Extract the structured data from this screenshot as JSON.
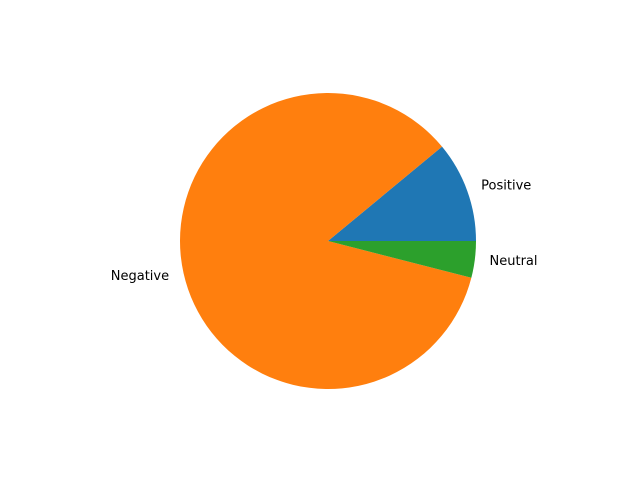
{
  "chart_data": {
    "type": "pie",
    "title": "",
    "categories": [
      "Positive",
      "Negative",
      "Neutral"
    ],
    "values": [
      11,
      85,
      4
    ],
    "colors": [
      "#1f77b4",
      "#ff7f0e",
      "#2ca02c"
    ],
    "start_angle": 0,
    "direction": "counterclockwise",
    "legend": "none"
  }
}
